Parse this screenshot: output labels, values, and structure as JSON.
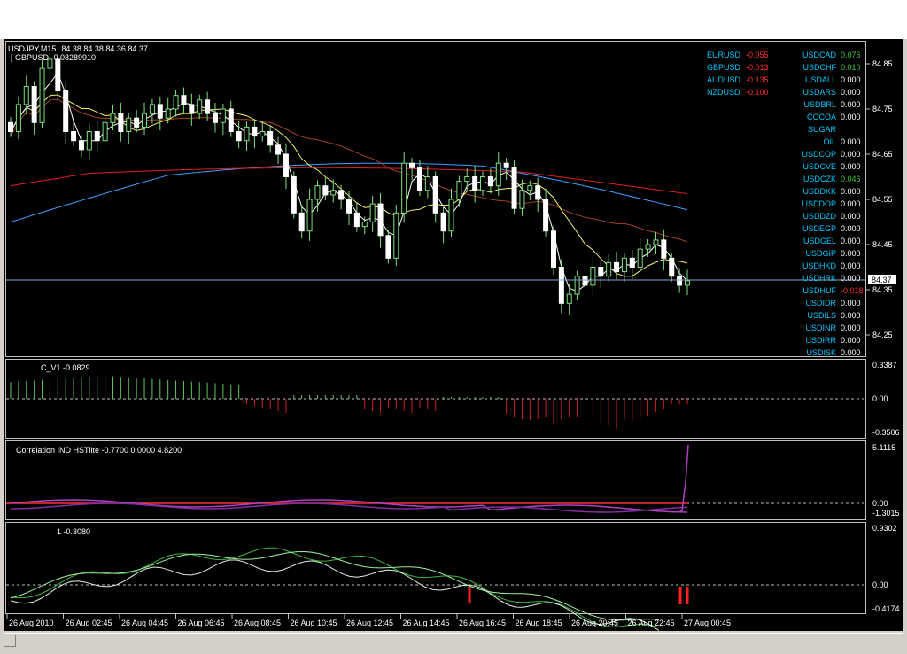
{
  "main_chart": {
    "title": "USDJPY,M15",
    "ohlc": "84.38 84.38 84.36 84.37",
    "subtitle": "[ GBPUSD -0.08289910",
    "price_label": "84.37",
    "scale": [
      "84.85",
      "84.75",
      "84.65",
      "84.55",
      "84.45",
      "84.35",
      "84.25"
    ]
  },
  "pairs_left": [
    {
      "name": "EURUSD",
      "value": "-0.055",
      "color": "#ff3030"
    },
    {
      "name": "GBPUSD",
      "value": "-0.013",
      "color": "#ff3030"
    },
    {
      "name": "AUDUSD",
      "value": "-0.135",
      "color": "#ff3030"
    },
    {
      "name": "NZDUSD",
      "value": "-0.100",
      "color": "#ff3030"
    }
  ],
  "pairs_right": [
    {
      "name": "USDCAD",
      "value": "0.076",
      "color": "#3cc83c"
    },
    {
      "name": "USDCHF",
      "value": "0.010",
      "color": "#3cc83c"
    },
    {
      "name": "USDALL",
      "value": "0.000",
      "color": "#ffffff"
    },
    {
      "name": "USDARS",
      "value": "0.000",
      "color": "#ffffff"
    },
    {
      "name": "USDBRL",
      "value": "0.000",
      "color": "#ffffff"
    },
    {
      "name": "COCOA",
      "value": "0.000",
      "color": "#ffffff"
    },
    {
      "name": "SUGAR",
      "value": "",
      "color": "#ffffff"
    },
    {
      "name": "OIL",
      "value": "0.000",
      "color": "#ffffff"
    },
    {
      "name": "USDCOP",
      "value": "0.000",
      "color": "#ffffff"
    },
    {
      "name": "USDCVE",
      "value": "0.000",
      "color": "#ffffff"
    },
    {
      "name": "USDCZK",
      "value": "0.046",
      "color": "#3cc83c"
    },
    {
      "name": "USDDKK",
      "value": "0.000",
      "color": "#ffffff"
    },
    {
      "name": "USDDOP",
      "value": "0.000",
      "color": "#ffffff"
    },
    {
      "name": "USDDZD",
      "value": "0.000",
      "color": "#ffffff"
    },
    {
      "name": "USDEGP",
      "value": "0.000",
      "color": "#ffffff"
    },
    {
      "name": "USDGEL",
      "value": "0.000",
      "color": "#ffffff"
    },
    {
      "name": "USDGIP",
      "value": "0.000",
      "color": "#ffffff"
    },
    {
      "name": "USDHKD",
      "value": "0.000",
      "color": "#ffffff"
    },
    {
      "name": "USDHRK",
      "value": "0.000",
      "color": "#ffffff"
    },
    {
      "name": "USDHUF",
      "value": "-0.018",
      "color": "#ff3030"
    },
    {
      "name": "USDIDR",
      "value": "0.000",
      "color": "#ffffff"
    },
    {
      "name": "USDILS",
      "value": "0.000",
      "color": "#ffffff"
    },
    {
      "name": "USDINR",
      "value": "0.000",
      "color": "#ffffff"
    },
    {
      "name": "USDIRR",
      "value": "0.000",
      "color": "#ffffff"
    },
    {
      "name": "USDISK",
      "value": "0.000",
      "color": "#ffffff"
    }
  ],
  "pair_name_color": "#00c8ff",
  "indicator1": {
    "label": "C_V1 -0.0829",
    "scale": [
      "0.3387",
      "0.00",
      "-0.3506"
    ]
  },
  "indicator2": {
    "label": "Correlation IND HSTlite -0.7700 0.0000 4.8200",
    "scale": [
      "5.1115",
      "0.00",
      "-1.3015"
    ]
  },
  "indicator3": {
    "label": "1 -0.3080",
    "scale": [
      "0.9302",
      "0.00",
      "-0.4174"
    ]
  },
  "time_axis": [
    "26 Aug 2010",
    "26 Aug 02:45",
    "26 Aug 04:45",
    "26 Aug 06:45",
    "26 Aug 08:45",
    "26 Aug 10:45",
    "26 Aug 12:45",
    "26 Aug 14:45",
    "26 Aug 16:45",
    "26 Aug 18:45",
    "26 Aug 20:45",
    "26 Aug 22:45",
    "27 Aug 00:45"
  ],
  "chart_data": {
    "type": "candlestick",
    "symbol": "USDJPY",
    "timeframe": "M15",
    "ylim": [
      84.25,
      84.85
    ],
    "close_approx": [
      84.7,
      84.76,
      84.8,
      84.72,
      84.84,
      84.86,
      84.79,
      84.7,
      84.68,
      84.66,
      84.7,
      84.68,
      84.72,
      84.74,
      84.7,
      84.73,
      84.71,
      84.74,
      84.76,
      84.73,
      84.75,
      84.78,
      84.76,
      84.74,
      84.77,
      84.74,
      84.72,
      84.75,
      84.7,
      84.68,
      84.71,
      84.69,
      84.7,
      84.67,
      84.65,
      84.6,
      84.52,
      84.48,
      84.55,
      84.58,
      84.56,
      84.57,
      84.55,
      84.52,
      84.49,
      84.5,
      84.54,
      84.47,
      84.42,
      84.52,
      84.63,
      84.62,
      84.57,
      84.6,
      84.52,
      84.48,
      84.55,
      84.59,
      84.6,
      84.57,
      84.6,
      84.58,
      84.63,
      84.62,
      84.53,
      84.57,
      84.58,
      84.55,
      84.48,
      84.4,
      84.32,
      84.34,
      84.38,
      84.36,
      84.4,
      84.38,
      84.41,
      84.39,
      84.42,
      84.4,
      84.44,
      84.45,
      84.46,
      84.42,
      84.38,
      84.36,
      84.37
    ]
  }
}
